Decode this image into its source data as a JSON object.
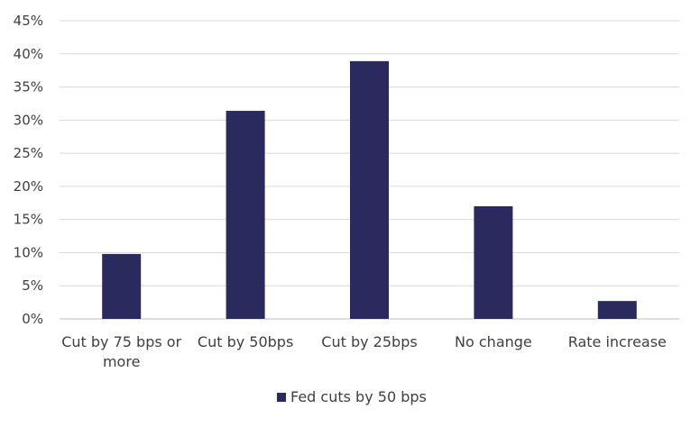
{
  "chart_data": {
    "type": "bar",
    "categories": [
      [
        "Cut by 75 bps or",
        "more"
      ],
      [
        "Cut by 50bps"
      ],
      [
        "Cut by 25bps"
      ],
      [
        "No change"
      ],
      [
        "Rate increase"
      ]
    ],
    "series": [
      {
        "name": "Fed cuts by 50 bps",
        "values": [
          9.8,
          31.4,
          38.9,
          17.0,
          2.7
        ]
      }
    ],
    "ylim": [
      0,
      45
    ],
    "yticks": [
      "0%",
      "5%",
      "10%",
      "15%",
      "20%",
      "25%",
      "30%",
      "35%",
      "40%",
      "45%"
    ],
    "ytick_values": [
      0,
      5,
      10,
      15,
      20,
      25,
      30,
      35,
      40,
      45
    ],
    "grid": true,
    "legend_position": "bottom-center",
    "colors": {
      "bar": "#2a2a5e",
      "grid": "#d9d9d9",
      "text": "#404040"
    }
  }
}
